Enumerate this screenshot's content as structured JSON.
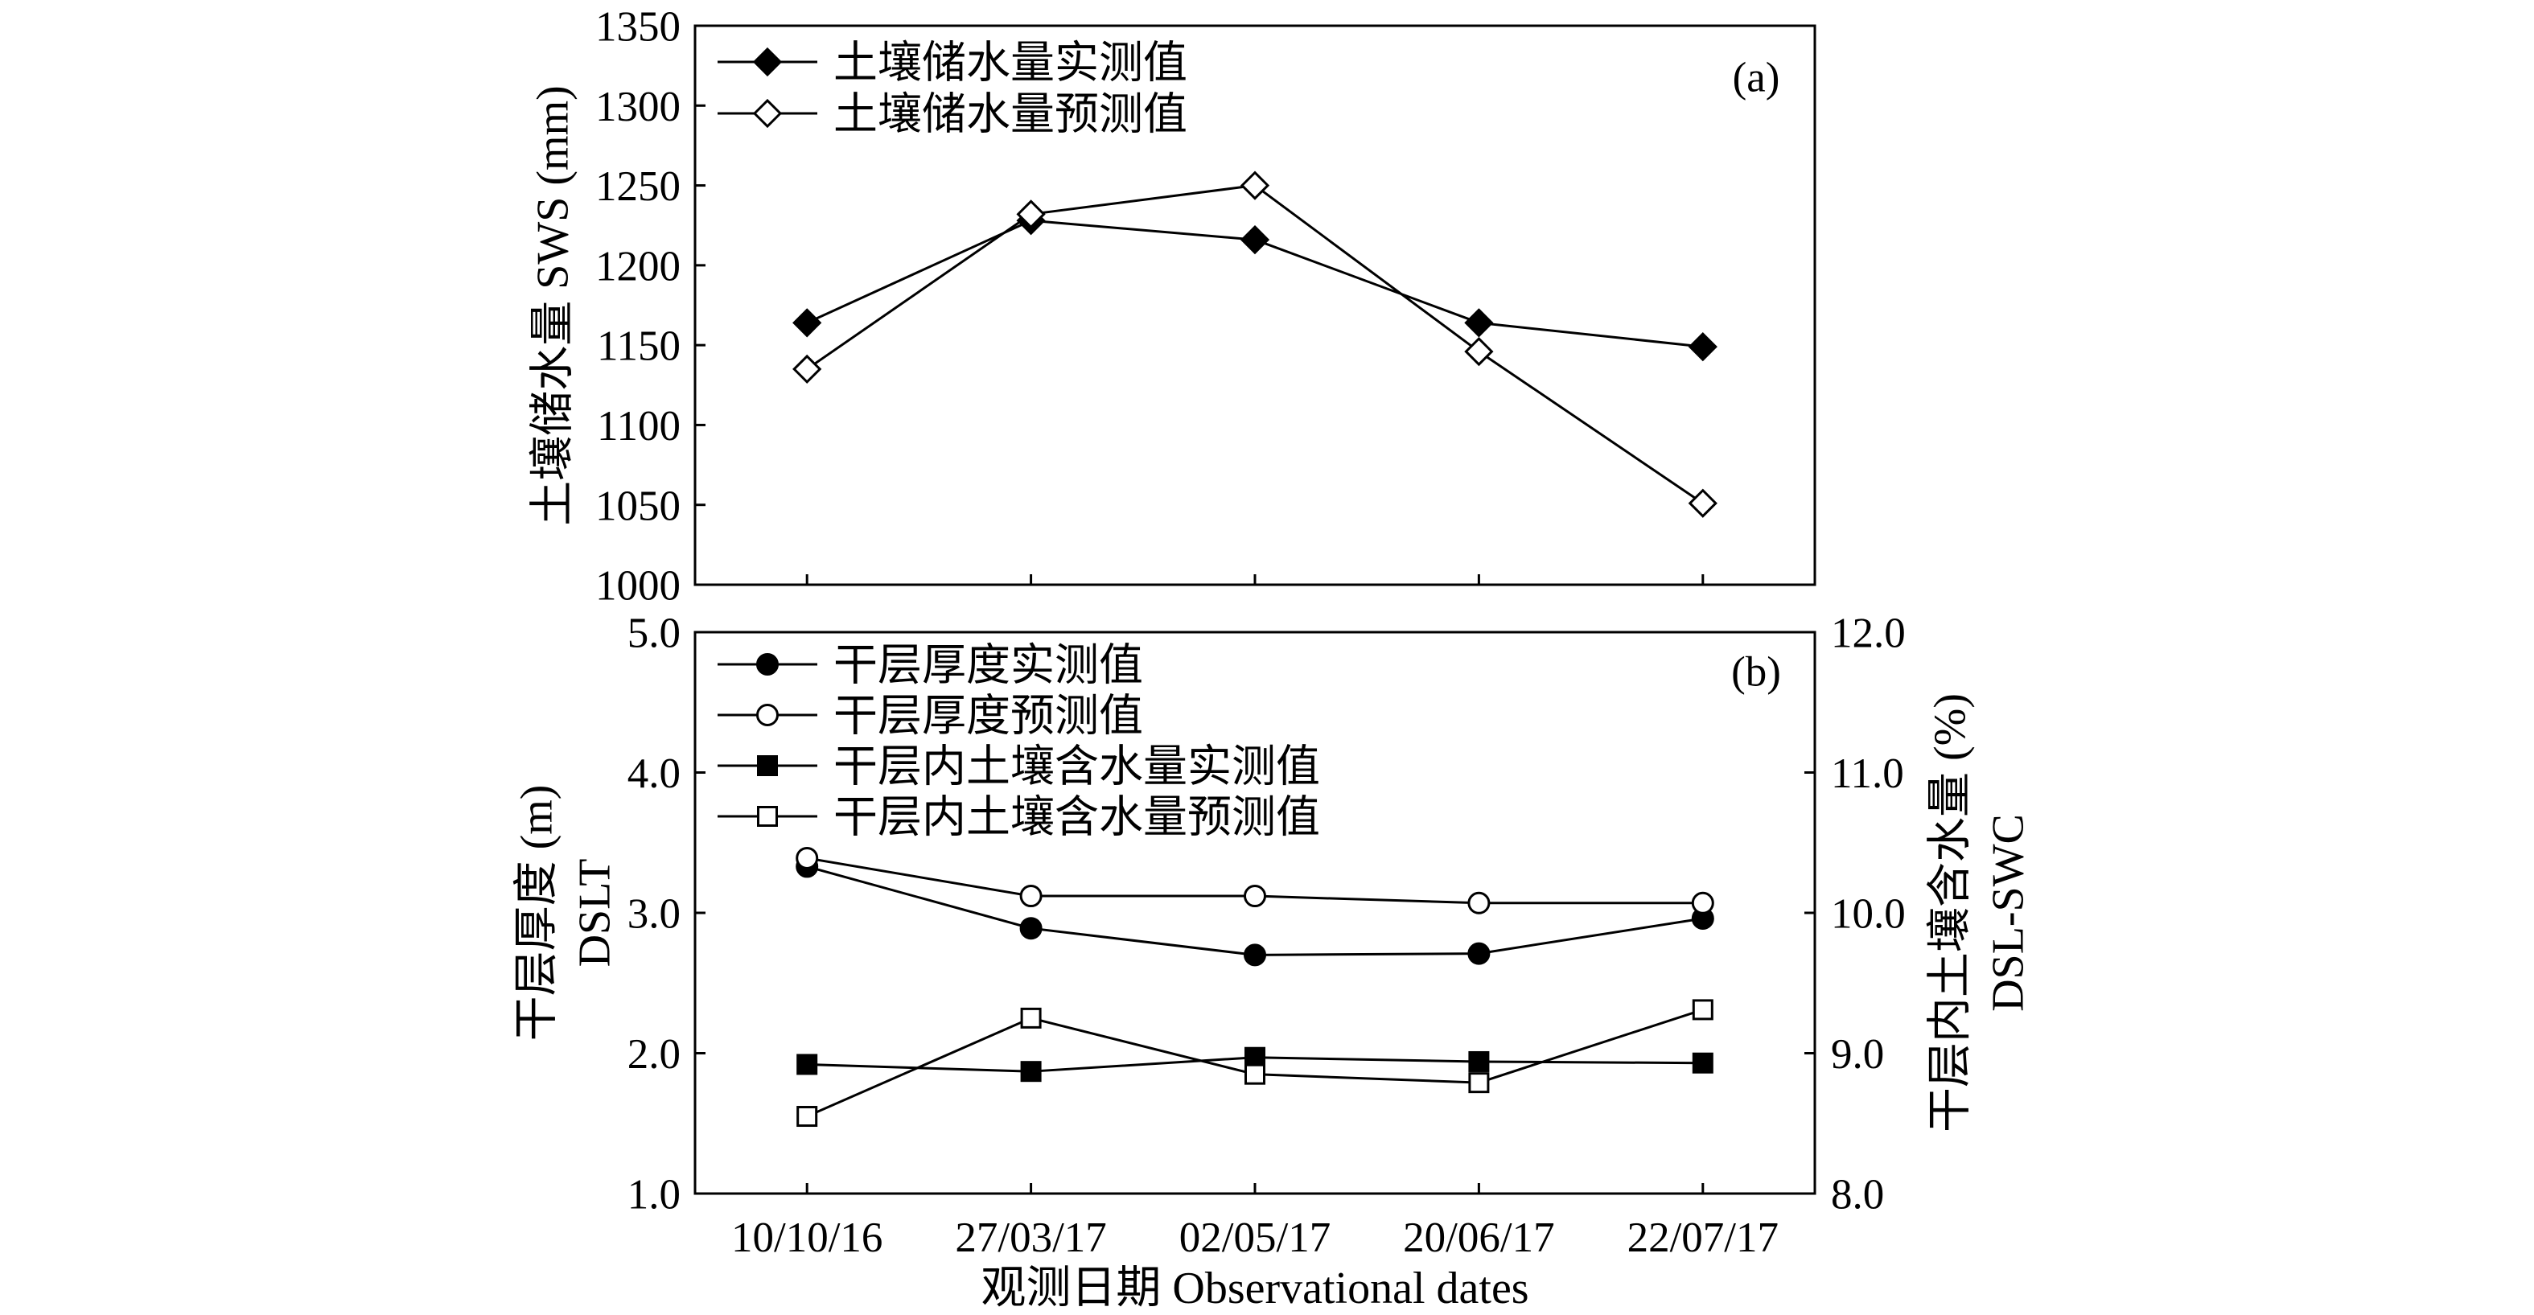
{
  "chart_data": {
    "type": "line",
    "categories": [
      "10/10/16",
      "27/03/17",
      "02/05/17",
      "20/06/17",
      "22/07/17"
    ],
    "xlabel": "观测日期 Observational dates",
    "grid": false,
    "panels": [
      {
        "label": "(a)",
        "ylabel": "土壤储水量 SWS (mm)",
        "ylim": [
          1000,
          1350
        ],
        "yticks": [
          "1000",
          "1050",
          "1100",
          "1150",
          "1200",
          "1250",
          "1300",
          "1350"
        ],
        "legend": "top-left",
        "series": [
          {
            "name": "土壤储水量实测值",
            "marker": "filled-diamond",
            "axis": "left",
            "color": "#000000",
            "values": [
              1164,
              1228,
              1216,
              1164,
              1149
            ]
          },
          {
            "name": "土壤储水量预测值",
            "marker": "open-diamond",
            "axis": "left",
            "color": "#000000",
            "values": [
              1135,
              1232,
              1250,
              1146,
              1051
            ]
          }
        ]
      },
      {
        "label": "(b)",
        "ylabel": [
          "干层厚度 (m)",
          "DSLT"
        ],
        "ylim": [
          1.0,
          5.0
        ],
        "yticks": [
          "1.0",
          "2.0",
          "3.0",
          "4.0",
          "5.0"
        ],
        "y2label": [
          "干层内土壤含水量 (%)",
          "DSL-SWC"
        ],
        "y2lim": [
          8.0,
          12.0
        ],
        "y2ticks": [
          "8.0",
          "9.0",
          "10.0",
          "11.0",
          "12.0"
        ],
        "legend": "top-left",
        "series": [
          {
            "name": "干层厚度实测值",
            "marker": "filled-circle",
            "axis": "left",
            "color": "#000000",
            "values": [
              3.33,
              2.89,
              2.7,
              2.71,
              2.96
            ]
          },
          {
            "name": "干层厚度预测值",
            "marker": "open-circle",
            "axis": "left",
            "color": "#000000",
            "values": [
              3.39,
              3.12,
              3.12,
              3.07,
              3.07
            ]
          },
          {
            "name": "干层内土壤含水量实测值",
            "marker": "filled-square",
            "axis": "right",
            "color": "#000000",
            "values": [
              8.92,
              8.87,
              8.97,
              8.94,
              8.93
            ]
          },
          {
            "name": "干层内土壤含水量预测值",
            "marker": "open-square",
            "axis": "right",
            "color": "#000000",
            "values": [
              8.55,
              9.25,
              8.85,
              8.79,
              9.31
            ]
          }
        ]
      }
    ]
  }
}
